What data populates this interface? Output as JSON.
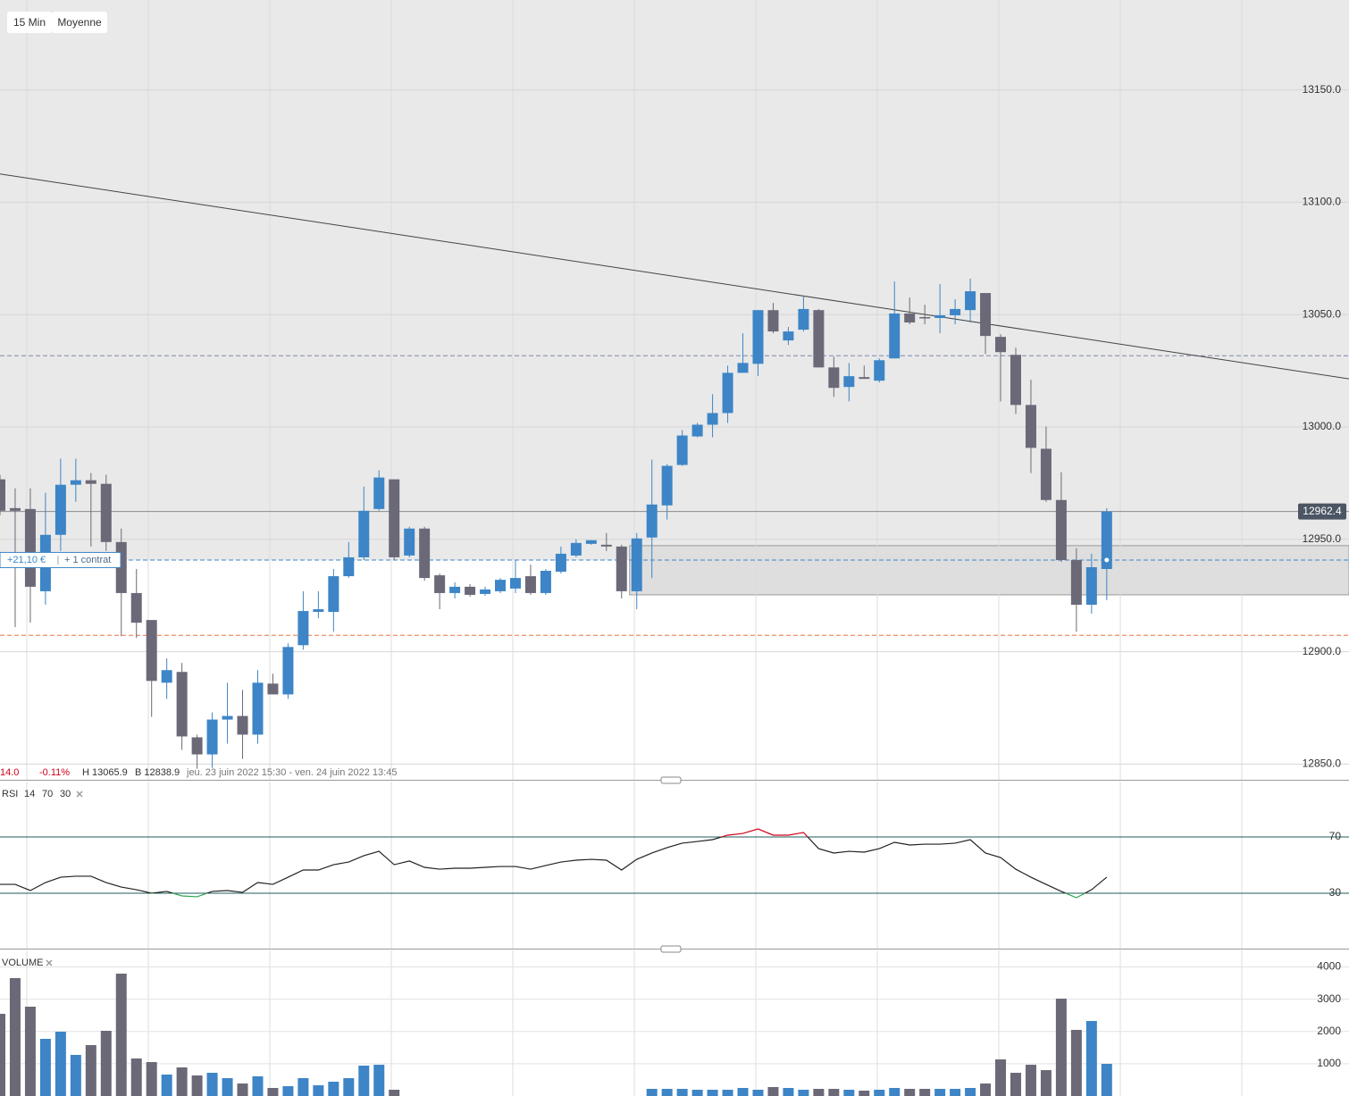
{
  "toolbar": [
    "15 Min",
    "Moyenne"
  ],
  "position": {
    "pnl": "+21,10 €",
    "size": "+ 1 contrat"
  },
  "stats": {
    "change": "14.0",
    "change_pct": "-0.11%",
    "high": "H 13065.9",
    "low": "B 12838.9",
    "range": "jeu. 23 juin 2022 15:30 - ven. 24 juin 2022 13:45"
  },
  "chart_data": [
    {
      "type": "candlestick",
      "up_color": "#3d85c6",
      "down_color": "#6b6977",
      "open": [
        12976.7,
        12963.9,
        12963.5,
        12926.9,
        12952.0,
        12974.3,
        12976.3,
        12974.7,
        12948.8,
        12926.1,
        12914.1,
        12886.2,
        12891.0,
        12861.9,
        12854.3,
        12869.8,
        12871.4,
        12863.1,
        12885.8,
        12881.0,
        12902.9,
        12917.7,
        12917.7,
        12933.6,
        12942.0,
        12963.5,
        12976.7,
        12942.8,
        12954.8,
        12934.0,
        12926.1,
        12928.9,
        12925.7,
        12926.9,
        12928.1,
        12933.6,
        12926.1,
        12935.6,
        12942.8,
        12948.0,
        12947.6,
        12946.8,
        12926.9,
        12950.8,
        12965.1,
        12983.1,
        12995.8,
        13001.0,
        13006.2,
        13024.1,
        13028.1,
        13052.0,
        13038.5,
        13043.3,
        13052.0,
        13026.5,
        13017.8,
        13022.2,
        13020.6,
        13030.5,
        13050.5,
        13048.9,
        13048.5,
        13049.7,
        13052.0,
        13059.6,
        13040.1,
        13032.1,
        13009.8,
        12990.3,
        12967.5,
        12940.8,
        12920.9,
        12936.8
      ],
      "high": [
        12978.7,
        12972.7,
        12972.7,
        12970.7,
        12985.9,
        12985.9,
        12979.5,
        12978.7,
        12954.8,
        12936.8,
        12914.1,
        12897.0,
        12895.0,
        12863.1,
        12873.0,
        12886.2,
        12883.0,
        12891.8,
        12890.2,
        12903.7,
        12926.9,
        12926.9,
        12936.8,
        12948.8,
        12973.5,
        12980.7,
        12976.7,
        12955.6,
        12955.6,
        12934.8,
        12930.9,
        12930.1,
        12928.9,
        12932.8,
        12940.8,
        12938.8,
        12936.8,
        12946.8,
        12950.0,
        12949.6,
        12952.8,
        12947.6,
        12952.8,
        12985.5,
        12983.5,
        12998.6,
        13001.8,
        13014.6,
        13027.3,
        13041.7,
        13052.0,
        13055.2,
        13044.5,
        13058.4,
        13052.5,
        13031.3,
        13028.5,
        13027.3,
        13030.5,
        13064.8,
        13057.6,
        13054.4,
        13063.6,
        13056.8,
        13066.0,
        13059.6,
        13041.3,
        13035.3,
        13021.0,
        13000.2,
        12979.9,
        12946.0,
        12943.6,
        12963.9
      ],
      "low": [
        12960.7,
        12910.9,
        12912.9,
        12920.9,
        12944.8,
        12966.7,
        12946.8,
        12944.8,
        12906.9,
        12906.1,
        12871.0,
        12879.0,
        12856.3,
        12847.9,
        12848.3,
        12859.1,
        12852.3,
        12859.1,
        12881.0,
        12879.0,
        12900.9,
        12914.9,
        12908.9,
        12932.8,
        12940.8,
        12962.7,
        12940.8,
        12942.0,
        12931.6,
        12918.9,
        12923.7,
        12924.5,
        12924.9,
        12926.1,
        12926.1,
        12925.3,
        12925.3,
        12934.8,
        12942.0,
        12947.6,
        12944.8,
        12923.7,
        12918.9,
        12932.8,
        12958.8,
        12982.7,
        12995.4,
        12995.4,
        13001.8,
        13024.1,
        13022.6,
        13041.7,
        13036.5,
        13042.5,
        13026.5,
        13013.4,
        13011.4,
        13021.4,
        13019.8,
        13030.5,
        13045.7,
        13045.7,
        13041.7,
        13045.7,
        13046.5,
        13032.5,
        13011.4,
        13005.8,
        12979.5,
        12966.7,
        12940.0,
        12908.9,
        12916.9,
        12922.9
      ],
      "close": [
        12962.7,
        12962.7,
        12928.9,
        12952.0,
        12974.3,
        12976.3,
        12974.7,
        12948.8,
        12926.1,
        12912.9,
        12887.0,
        12891.8,
        12862.3,
        12854.3,
        12869.8,
        12871.4,
        12863.1,
        12886.2,
        12881.0,
        12902.1,
        12918.1,
        12918.9,
        12933.6,
        12942.0,
        12962.7,
        12977.5,
        12942.0,
        12954.8,
        12932.8,
        12926.1,
        12928.9,
        12925.3,
        12927.7,
        12932.0,
        12932.8,
        12926.1,
        12936.0,
        12943.6,
        12948.4,
        12949.6,
        12946.8,
        12926.9,
        12950.4,
        12965.5,
        12982.7,
        12996.2,
        13001.0,
        13006.2,
        13024.1,
        13028.5,
        13052.0,
        13042.5,
        13042.5,
        13052.5,
        13026.5,
        13017.4,
        13022.6,
        13021.4,
        13029.7,
        13050.5,
        13046.5,
        13048.5,
        13049.7,
        13052.5,
        13060.4,
        13040.5,
        13033.3,
        13009.8,
        12990.7,
        12967.5,
        12940.8,
        12920.9,
        12937.6,
        12962.4
      ],
      "ylim": [
        12843.0,
        13190.0
      ],
      "yticks": [
        {
          "value": 12850,
          "label": "12850.0"
        },
        {
          "value": 12900,
          "label": "12900.0"
        },
        {
          "value": 12950,
          "label": "12950.0"
        },
        {
          "value": 13000,
          "label": "13000.0"
        },
        {
          "value": 13050,
          "label": "13050.0"
        },
        {
          "value": 13100,
          "label": "13100.0"
        },
        {
          "value": 13150,
          "label": "13150.0"
        }
      ],
      "grid": true,
      "levels": [
        {
          "value": 12940.8,
          "color": "#3d85c6",
          "dashed": true
        },
        {
          "value": 12907.3,
          "color": "#e8743b",
          "dashed": true
        },
        {
          "value": 13031.7,
          "color": "#7f86b0",
          "dashed": true
        }
      ],
      "trendline": [
        13112.6,
        13021.4
      ],
      "zone": {
        "low": 12925.3,
        "high": 12947.2,
        "start": 42
      }
    },
    {
      "type": "line",
      "title": "RSI",
      "params": [
        "14",
        "70",
        "30"
      ],
      "color": "#222222",
      "over_color": "#d0021b",
      "under_color": "#2ea44f",
      "level_color": "#1f5c5c",
      "values": [
        36.3,
        36.3,
        31.9,
        37.6,
        41.4,
        42.1,
        42.1,
        37.6,
        34.4,
        32.5,
        30.0,
        31.3,
        28.1,
        27.5,
        31.3,
        31.9,
        30.6,
        37.6,
        36.3,
        41.4,
        46.5,
        46.5,
        50.3,
        52.2,
        56.7,
        59.8,
        50.3,
        52.9,
        48.4,
        47.1,
        47.8,
        47.8,
        48.4,
        49.0,
        49.0,
        47.1,
        49.7,
        52.2,
        53.5,
        54.1,
        53.5,
        46.5,
        54.1,
        58.6,
        62.4,
        65.6,
        66.8,
        68.1,
        71.3,
        72.5,
        75.7,
        71.3,
        71.3,
        73.2,
        61.7,
        58.6,
        59.8,
        59.2,
        61.7,
        66.2,
        64.3,
        64.9,
        64.9,
        65.6,
        68.1,
        58.6,
        55.4,
        47.1,
        41.4,
        36.3,
        31.3,
        26.8,
        32.5,
        41.4
      ],
      "ylim": [
        -9.4,
        109.4
      ],
      "yticks": [
        70,
        30
      ]
    },
    {
      "type": "bar",
      "title": "VOLUME",
      "values": [
        2546,
        3652,
        2767,
        1771,
        1992,
        1273,
        1577,
        2020,
        3791,
        1162,
        1051,
        664,
        885,
        636,
        719,
        553,
        387,
        609,
        249,
        304,
        553,
        332,
        443,
        553,
        941,
        968,
        194,
        null,
        null,
        null,
        null,
        null,
        null,
        null,
        null,
        null,
        null,
        null,
        null,
        null,
        null,
        null,
        null,
        221,
        221,
        221,
        194,
        194,
        194,
        249,
        194,
        277,
        249,
        194,
        221,
        221,
        194,
        166,
        194,
        249,
        221,
        221,
        221,
        221,
        249,
        387,
        1134,
        719,
        968,
        802,
        3016,
        2048,
        2324,
        996
      ],
      "ylim": [
        0,
        4400
      ],
      "yticks": [
        1000,
        2000,
        3000,
        4000
      ],
      "grid": true
    }
  ]
}
